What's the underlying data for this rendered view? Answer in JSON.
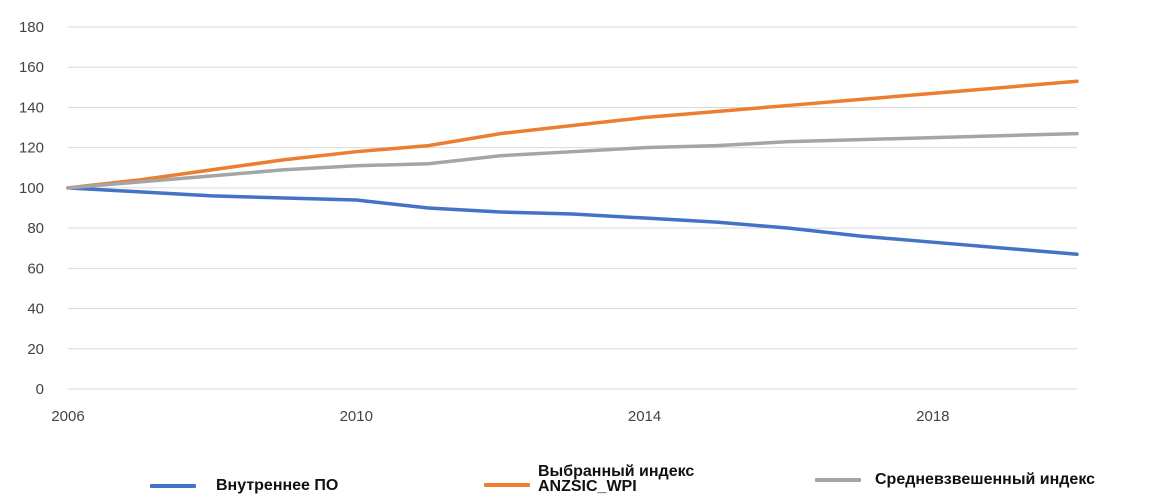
{
  "chart_data": {
    "type": "line",
    "title": "",
    "xlabel": "",
    "ylabel": "",
    "x": [
      2006,
      2007,
      2008,
      2009,
      2010,
      2011,
      2012,
      2013,
      2014,
      2015,
      2016,
      2017,
      2018,
      2019,
      2020
    ],
    "x_ticks": [
      "2006",
      "2010",
      "2014",
      "2018"
    ],
    "xlim": [
      2006,
      2020
    ],
    "y_ticks": [
      "0",
      "20",
      "40",
      "60",
      "80",
      "100",
      "120",
      "140",
      "160",
      "180"
    ],
    "ylim": [
      0,
      180
    ],
    "grid": "horizontal",
    "legend_position": "bottom",
    "series": [
      {
        "name": "Внутреннее ПО",
        "color": "#4472C4",
        "values": [
          100,
          98,
          96,
          95,
          94,
          90,
          88,
          87,
          85,
          83,
          80,
          76,
          73,
          70,
          67
        ]
      },
      {
        "name": "Выбранный индекс ANZSIC_WPI",
        "color": "#ED7D31",
        "values": [
          100,
          104,
          109,
          114,
          118,
          121,
          127,
          131,
          135,
          138,
          141,
          144,
          147,
          150,
          153
        ]
      },
      {
        "name": "Средневзвешенный индекс",
        "color": "#A5A5A5",
        "values": [
          100,
          103,
          106,
          109,
          111,
          112,
          116,
          118,
          120,
          121,
          123,
          124,
          125,
          126,
          127
        ]
      }
    ]
  }
}
